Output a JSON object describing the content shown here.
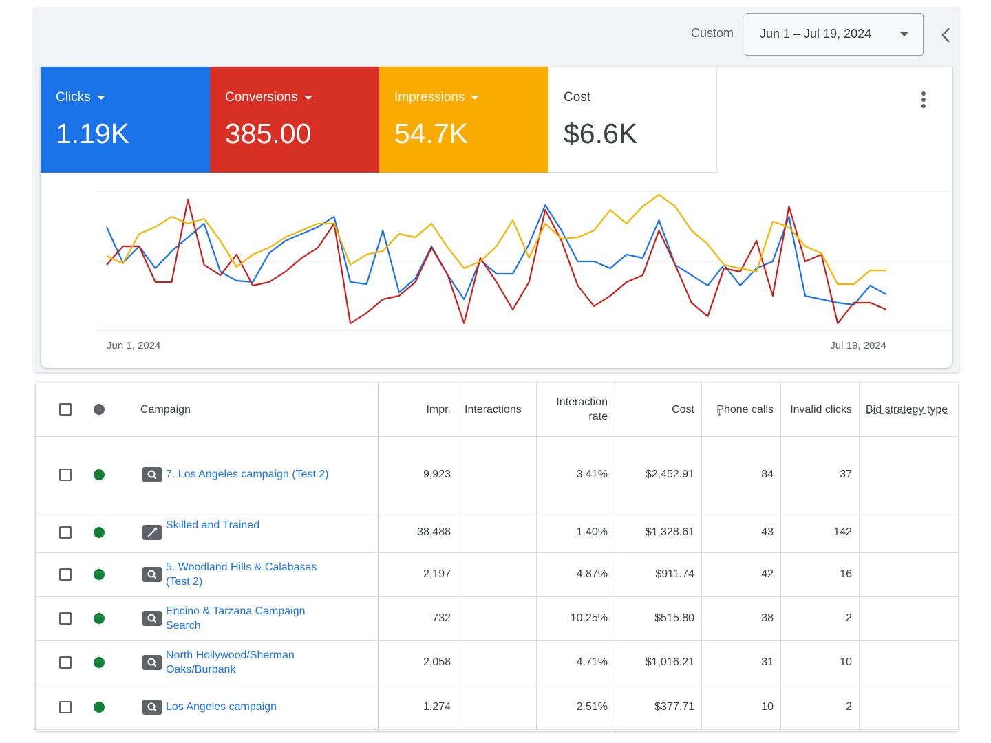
{
  "header": {
    "range_type": "Custom",
    "date_range": "Jun 1 – Jul 19, 2024"
  },
  "cards": [
    {
      "label": "Clicks",
      "value": "1.19K",
      "color": "#1a73e8",
      "dropdown": true
    },
    {
      "label": "Conversions",
      "value": "385.00",
      "color": "#d93025",
      "dropdown": true
    },
    {
      "label": "Impressions",
      "value": "54.7K",
      "color": "#f9ab00",
      "dropdown": true
    },
    {
      "label": "Cost",
      "value": "$6.6K",
      "color": "#ffffff",
      "dropdown": false
    }
  ],
  "chart_data": {
    "type": "line",
    "categories": [
      "Jun 1, 2024",
      null,
      null,
      null,
      null,
      null,
      null,
      null,
      null,
      null,
      null,
      null,
      null,
      null,
      null,
      null,
      null,
      null,
      null,
      null,
      null,
      null,
      null,
      null,
      null,
      null,
      null,
      null,
      null,
      null,
      null,
      null,
      null,
      null,
      null,
      null,
      null,
      null,
      null,
      null,
      null,
      null,
      null,
      null,
      null,
      null,
      null,
      null,
      "Jul 19, 2024"
    ],
    "ylim": [
      0,
      210
    ],
    "series": [
      {
        "name": "Clicks",
        "color": "#1a73e8",
        "values": [
          150,
          98,
          122,
          90,
          115,
          135,
          155,
          85,
          72,
          70,
          112,
          130,
          140,
          150,
          165,
          70,
          67,
          145,
          55,
          75,
          122,
          80,
          45,
          102,
          82,
          82,
          125,
          182,
          145,
          100,
          100,
          90,
          110,
          105,
          160,
          95,
          80,
          65,
          95,
          65,
          90,
          100,
          165,
          50,
          45,
          40,
          37,
          65,
          52
        ]
      },
      {
        "name": "Conversions",
        "color": "#c5221f",
        "values": [
          95,
          122,
          122,
          70,
          70,
          190,
          95,
          80,
          110,
          65,
          70,
          85,
          105,
          120,
          155,
          10,
          25,
          45,
          50,
          70,
          120,
          80,
          10,
          105,
          70,
          30,
          70,
          175,
          130,
          65,
          35,
          50,
          70,
          80,
          145,
          95,
          40,
          20,
          90,
          85,
          130,
          50,
          180,
          100,
          110,
          10,
          40,
          40,
          30
        ]
      },
      {
        "name": "Impressions",
        "color": "#f4b400",
        "values": [
          108,
          97,
          140,
          150,
          165,
          155,
          162,
          130,
          92,
          110,
          120,
          135,
          145,
          155,
          155,
          95,
          110,
          115,
          140,
          135,
          155,
          120,
          90,
          100,
          122,
          160,
          105,
          155,
          133,
          135,
          145,
          175,
          155,
          180,
          197,
          180,
          145,
          125,
          95,
          90,
          85,
          158,
          150,
          122,
          112,
          67,
          67,
          87,
          87
        ]
      }
    ]
  },
  "table": {
    "columns": [
      "Campaign",
      "Impr.",
      "Interactions",
      "Interaction rate",
      "Cost",
      "Phone calls",
      "Invalid clicks",
      "Bid strategy type"
    ],
    "rows": [
      [
        "7. Los Angeles campaign (Test 2)",
        "9,923",
        null,
        "3.41%",
        "$2,452.91",
        "84",
        "37",
        null
      ],
      [
        "Skilled and Trained",
        "38,488",
        null,
        "1.40%",
        "$1,328.61",
        "43",
        "142",
        null
      ],
      [
        "5. Woodland Hills & Calabasas (Test 2)",
        "2,197",
        null,
        "4.87%",
        "$911.74",
        "42",
        "16",
        null
      ],
      [
        "Encino & Tarzana Campaign Search",
        "732",
        null,
        "10.25%",
        "$515.80",
        "38",
        "2",
        null
      ],
      [
        "North Hollywood/Sherman Oaks/Burbank",
        "2,058",
        null,
        "4.71%",
        "$1,016.21",
        "31",
        "10",
        null
      ],
      [
        "Los Angeles campaign",
        "1,274",
        null,
        "2.51%",
        "$377.71",
        "10",
        "2",
        null
      ]
    ],
    "row_icons": [
      "search",
      "smart",
      "search",
      "search",
      "search",
      "search"
    ]
  }
}
